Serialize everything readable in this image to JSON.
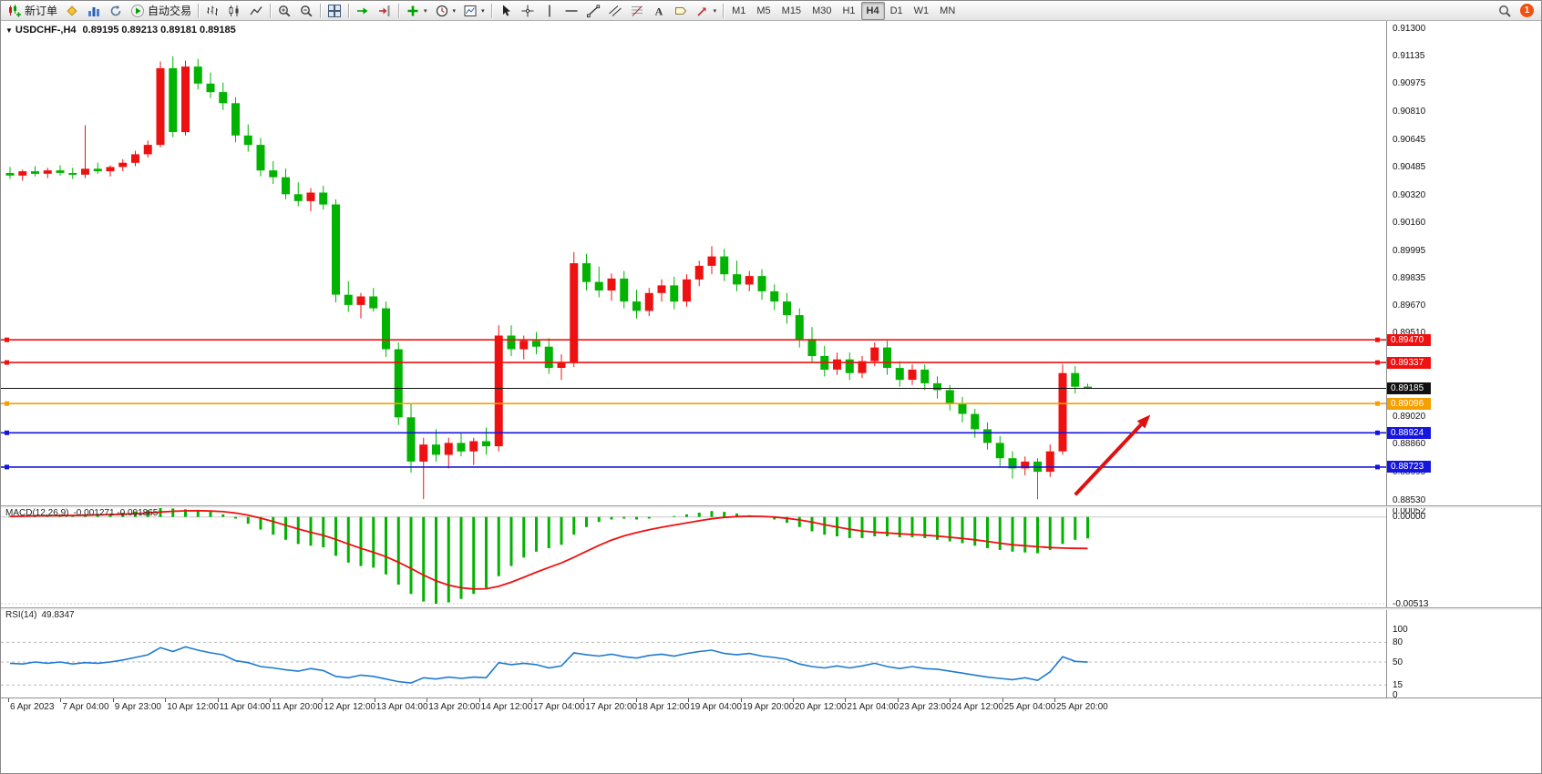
{
  "toolbar": {
    "groups": [
      [
        {
          "name": "new-order",
          "icon": "new-order-icon",
          "label": "新订单"
        },
        {
          "name": "mql-editor",
          "icon": "diamond-icon"
        },
        {
          "name": "market-watch",
          "icon": "market-watch-icon"
        },
        {
          "name": "refresh",
          "icon": "refresh-icon"
        },
        {
          "name": "auto-trading",
          "icon": "autotrade-icon",
          "label": "自动交易"
        }
      ],
      [
        {
          "name": "bar-chart-mode",
          "icon": "bar-chart-icon"
        },
        {
          "name": "candle-chart-mode",
          "icon": "candle-chart-icon"
        },
        {
          "name": "line-chart-mode",
          "icon": "line-chart-icon"
        }
      ],
      [
        {
          "name": "zoom-in",
          "icon": "zoom-in-icon"
        },
        {
          "name": "zoom-out",
          "icon": "zoom-out-icon"
        }
      ],
      [
        {
          "name": "tile-windows",
          "icon": "tile-windows-icon"
        }
      ],
      [
        {
          "name": "auto-scroll",
          "icon": "auto-scroll-icon"
        },
        {
          "name": "chart-shift",
          "icon": "chart-shift-icon"
        }
      ],
      [
        {
          "name": "indicators",
          "icon": "indicators-icon",
          "dd": true
        },
        {
          "name": "periods",
          "icon": "periods-icon",
          "dd": true
        },
        {
          "name": "templates",
          "icon": "templates-icon",
          "dd": true
        }
      ],
      [
        {
          "name": "cursor",
          "icon": "cursor-icon"
        },
        {
          "name": "crosshair",
          "icon": "crosshair-icon"
        },
        {
          "name": "vertical-line",
          "icon": "vline-icon"
        },
        {
          "name": "horizontal-line",
          "icon": "hline-icon"
        },
        {
          "name": "trendline",
          "icon": "trendline-icon"
        },
        {
          "name": "channel",
          "icon": "channel-icon"
        },
        {
          "name": "fibonacci",
          "icon": "fibonacci-icon"
        },
        {
          "name": "text",
          "icon": "text-icon"
        },
        {
          "name": "text-label",
          "icon": "label-icon"
        },
        {
          "name": "arrows",
          "icon": "arrows-icon",
          "dd": true
        }
      ]
    ],
    "timeframes": [
      "M1",
      "M5",
      "M15",
      "M30",
      "H1",
      "H4",
      "D1",
      "W1",
      "MN"
    ],
    "active_timeframe": "H4",
    "notification_count": "1"
  },
  "chart": {
    "symbol_period": "USDCHF-,H4",
    "ohlc_values": "0.89195 0.89213 0.89181 0.89185"
  },
  "chart_data": {
    "type": "candlestick",
    "title": "USDCHF-,H4",
    "current": {
      "open": "0.89195",
      "high": "0.89213",
      "low": "0.89181",
      "close": "0.89185"
    },
    "price_max": 0.913,
    "price_min": 0.8853,
    "price_axis_labels": [
      "0.91300",
      "0.91135",
      "0.90975",
      "0.90810",
      "0.90645",
      "0.90485",
      "0.90320",
      "0.90160",
      "0.89995",
      "0.89835",
      "0.89670",
      "0.89510",
      "0.89345",
      "0.89185",
      "0.89020",
      "0.88860",
      "0.88695",
      "0.88530"
    ],
    "candles": [
      [
        0.9045,
        0.90485,
        0.90415,
        0.90435
      ],
      [
        0.90435,
        0.9047,
        0.90405,
        0.9046
      ],
      [
        0.9046,
        0.9049,
        0.9043,
        0.90445
      ],
      [
        0.90445,
        0.9048,
        0.9042,
        0.90465
      ],
      [
        0.90465,
        0.90495,
        0.90435,
        0.9045
      ],
      [
        0.9045,
        0.9048,
        0.90415,
        0.9044
      ],
      [
        0.9044,
        0.9073,
        0.9042,
        0.90475
      ],
      [
        0.90475,
        0.9051,
        0.90445,
        0.9046
      ],
      [
        0.9046,
        0.90495,
        0.9043,
        0.90485
      ],
      [
        0.90485,
        0.9053,
        0.9046,
        0.9051
      ],
      [
        0.9051,
        0.9058,
        0.9049,
        0.9056
      ],
      [
        0.9056,
        0.9064,
        0.9054,
        0.90615
      ],
      [
        0.90615,
        0.91105,
        0.906,
        0.91065
      ],
      [
        0.91065,
        0.91135,
        0.9066,
        0.9069
      ],
      [
        0.9069,
        0.9111,
        0.9067,
        0.91075
      ],
      [
        0.91075,
        0.9112,
        0.9094,
        0.90975
      ],
      [
        0.90975,
        0.9104,
        0.9089,
        0.90925
      ],
      [
        0.90925,
        0.9098,
        0.9082,
        0.9086
      ],
      [
        0.9086,
        0.90895,
        0.9063,
        0.9067
      ],
      [
        0.9067,
        0.90735,
        0.90575,
        0.90615
      ],
      [
        0.90615,
        0.90655,
        0.9043,
        0.90465
      ],
      [
        0.90465,
        0.9052,
        0.90385,
        0.90425
      ],
      [
        0.90425,
        0.90475,
        0.90295,
        0.90325
      ],
      [
        0.90325,
        0.90395,
        0.90255,
        0.90285
      ],
      [
        0.90285,
        0.9036,
        0.90225,
        0.90335
      ],
      [
        0.90335,
        0.90375,
        0.90235,
        0.90265
      ],
      [
        0.90265,
        0.90295,
        0.8969,
        0.89735
      ],
      [
        0.89735,
        0.89815,
        0.89635,
        0.89675
      ],
      [
        0.89675,
        0.89745,
        0.89595,
        0.89725
      ],
      [
        0.89725,
        0.89775,
        0.89635,
        0.89655
      ],
      [
        0.89655,
        0.89695,
        0.8937,
        0.89415
      ],
      [
        0.89415,
        0.89455,
        0.8897,
        0.89015
      ],
      [
        0.89015,
        0.89095,
        0.8869,
        0.88755
      ],
      [
        0.88755,
        0.88895,
        0.88535,
        0.88855
      ],
      [
        0.88855,
        0.88945,
        0.88755,
        0.88795
      ],
      [
        0.88795,
        0.88895,
        0.88715,
        0.88865
      ],
      [
        0.88865,
        0.88925,
        0.88785,
        0.88815
      ],
      [
        0.88815,
        0.88895,
        0.88735,
        0.88875
      ],
      [
        0.88875,
        0.88955,
        0.88795,
        0.88845
      ],
      [
        0.88845,
        0.89555,
        0.88815,
        0.89495
      ],
      [
        0.89495,
        0.89555,
        0.89375,
        0.89415
      ],
      [
        0.89415,
        0.89495,
        0.89355,
        0.89465
      ],
      [
        0.89465,
        0.89515,
        0.89385,
        0.8943
      ],
      [
        0.8943,
        0.8948,
        0.8927,
        0.89305
      ],
      [
        0.89305,
        0.89385,
        0.89235,
        0.8934
      ],
      [
        0.8934,
        0.89985,
        0.8931,
        0.8992
      ],
      [
        0.8992,
        0.89975,
        0.8976,
        0.8981
      ],
      [
        0.8981,
        0.899,
        0.8972,
        0.8976
      ],
      [
        0.8976,
        0.8986,
        0.897,
        0.8983
      ],
      [
        0.8983,
        0.89875,
        0.89655,
        0.89695
      ],
      [
        0.89695,
        0.89765,
        0.89595,
        0.8964
      ],
      [
        0.8964,
        0.89775,
        0.8961,
        0.89745
      ],
      [
        0.89745,
        0.89825,
        0.89695,
        0.8979
      ],
      [
        0.8979,
        0.8984,
        0.8965,
        0.89695
      ],
      [
        0.89695,
        0.89855,
        0.89665,
        0.89825
      ],
      [
        0.89825,
        0.89935,
        0.89785,
        0.89905
      ],
      [
        0.89905,
        0.9002,
        0.89855,
        0.8996
      ],
      [
        0.8996,
        0.90005,
        0.89815,
        0.89855
      ],
      [
        0.89855,
        0.89935,
        0.89755,
        0.89795
      ],
      [
        0.89795,
        0.89875,
        0.89755,
        0.89845
      ],
      [
        0.89845,
        0.89885,
        0.89705,
        0.89755
      ],
      [
        0.89755,
        0.89795,
        0.89645,
        0.89695
      ],
      [
        0.89695,
        0.89745,
        0.89565,
        0.89615
      ],
      [
        0.89615,
        0.89655,
        0.89425,
        0.89475
      ],
      [
        0.89475,
        0.89545,
        0.89335,
        0.89375
      ],
      [
        0.89375,
        0.89435,
        0.89255,
        0.89295
      ],
      [
        0.89295,
        0.89395,
        0.89265,
        0.89355
      ],
      [
        0.89355,
        0.89395,
        0.89235,
        0.89275
      ],
      [
        0.89275,
        0.89375,
        0.89245,
        0.89345
      ],
      [
        0.89345,
        0.89455,
        0.89315,
        0.89425
      ],
      [
        0.89425,
        0.89465,
        0.89265,
        0.89305
      ],
      [
        0.89305,
        0.89345,
        0.89195,
        0.89235
      ],
      [
        0.89235,
        0.89325,
        0.89205,
        0.89295
      ],
      [
        0.89295,
        0.89325,
        0.89175,
        0.89215
      ],
      [
        0.89215,
        0.89255,
        0.89125,
        0.89175
      ],
      [
        0.89175,
        0.89205,
        0.89055,
        0.89095
      ],
      [
        0.89095,
        0.89135,
        0.88985,
        0.89035
      ],
      [
        0.89035,
        0.89065,
        0.88895,
        0.88945
      ],
      [
        0.88945,
        0.88985,
        0.88825,
        0.88865
      ],
      [
        0.88865,
        0.88905,
        0.88725,
        0.88775
      ],
      [
        0.88775,
        0.88815,
        0.88655,
        0.88715
      ],
      [
        0.88715,
        0.88785,
        0.88675,
        0.88755
      ],
      [
        0.88755,
        0.88775,
        0.88535,
        0.88695
      ],
      [
        0.88695,
        0.88855,
        0.88665,
        0.88815
      ],
      [
        0.88815,
        0.89325,
        0.88795,
        0.89275
      ],
      [
        0.89275,
        0.89315,
        0.89155,
        0.89195
      ],
      [
        0.89195,
        0.89213,
        0.89181,
        0.89185
      ]
    ],
    "hlines": [
      {
        "price": 0.8947,
        "label": "0.89470",
        "color": "#f01010"
      },
      {
        "price": 0.89337,
        "label": "0.89337",
        "color": "#f01010"
      },
      {
        "price": 0.89185,
        "label": "0.89185",
        "color": "#111111",
        "current": true
      },
      {
        "price": 0.89096,
        "label": "0.89096",
        "color": "#f5a000"
      },
      {
        "price": 0.88924,
        "label": "0.88924",
        "color": "#1515dd"
      },
      {
        "price": 0.88723,
        "label": "0.88723",
        "color": "#1515dd"
      }
    ],
    "annotation_arrow": {
      "from_index": 85,
      "from_price": 0.8856,
      "to_index": 91,
      "to_price": 0.8903,
      "color": "#e01010"
    },
    "macd": {
      "name": "MACD(12,26,9)",
      "current": "-0.001271 -0.001865",
      "axis_labels": [
        "0.00052",
        "0.00000",
        "-0.00513"
      ],
      "axis_max": 0.00052,
      "axis_min": -0.00513,
      "histogram": [
        5e-05,
        8e-05,
        0.0001,
        0.0001,
        0.00012,
        0.0001,
        0.00015,
        0.00018,
        0.0002,
        0.00025,
        0.00032,
        0.0004,
        0.00052,
        0.0005,
        0.00045,
        0.0004,
        0.0003,
        0.00015,
        -0.0001,
        -0.0004,
        -0.00075,
        -0.00105,
        -0.00135,
        -0.0016,
        -0.0017,
        -0.0018,
        -0.0023,
        -0.0027,
        -0.0029,
        -0.003,
        -0.0034,
        -0.004,
        -0.00455,
        -0.005,
        -0.00513,
        -0.00505,
        -0.00485,
        -0.00455,
        -0.0042,
        -0.0035,
        -0.0029,
        -0.0024,
        -0.00205,
        -0.00185,
        -0.00165,
        -0.00105,
        -0.0006,
        -0.0003,
        -0.00015,
        -0.0001,
        -0.00015,
        -0.0001,
        0.0,
        5e-05,
        0.00015,
        0.00025,
        0.00035,
        0.0003,
        0.0002,
        0.0001,
        0.0,
        -0.00015,
        -0.00035,
        -0.0006,
        -0.00085,
        -0.00105,
        -0.00115,
        -0.00125,
        -0.00125,
        -0.00115,
        -0.00115,
        -0.0012,
        -0.0012,
        -0.00125,
        -0.00135,
        -0.00145,
        -0.00155,
        -0.0017,
        -0.00185,
        -0.00195,
        -0.00205,
        -0.0021,
        -0.00215,
        -0.00195,
        -0.0016,
        -0.00135,
        -0.00127
      ],
      "signal": [
        3e-05,
        4e-05,
        6e-05,
        7e-05,
        8e-05,
        9e-05,
        0.0001,
        0.00012,
        0.00014,
        0.00016,
        0.00019,
        0.00023,
        0.00029,
        0.00033,
        0.00036,
        0.00037,
        0.00035,
        0.00031,
        0.00023,
        0.0001,
        -7e-05,
        -0.00027,
        -0.00049,
        -0.00071,
        -0.00091,
        -0.00109,
        -0.00133,
        -0.0016,
        -0.00186,
        -0.00209,
        -0.00235,
        -0.00268,
        -0.00305,
        -0.00344,
        -0.00378,
        -0.00403,
        -0.00419,
        -0.00426,
        -0.00425,
        -0.0041,
        -0.00386,
        -0.00357,
        -0.00327,
        -0.00299,
        -0.00272,
        -0.00239,
        -0.00203,
        -0.00168,
        -0.00137,
        -0.00112,
        -0.00093,
        -0.00076,
        -0.00061,
        -0.00048,
        -0.00035,
        -0.00023,
        -0.00011,
        -3e-05,
        2e-05,
        4e-05,
        3e-05,
        -1e-05,
        -8e-05,
        -0.00018,
        -0.00031,
        -0.00046,
        -0.0006,
        -0.00073,
        -0.00083,
        -0.0009,
        -0.00095,
        -0.001,
        -0.00104,
        -0.00108,
        -0.00113,
        -0.0012,
        -0.00127,
        -0.00135,
        -0.00145,
        -0.00155,
        -0.00165,
        -0.0017,
        -0.00176,
        -0.00181,
        -0.00184,
        -0.00186,
        -0.001865
      ]
    },
    "rsi": {
      "name": "RSI(14)",
      "current": "49.8347",
      "axis_labels": [
        "100",
        "80",
        "50",
        "15",
        "0"
      ],
      "levels": [
        80,
        50,
        15
      ],
      "values": [
        48,
        47,
        50,
        48,
        50,
        47,
        49,
        48,
        50,
        53,
        57,
        61,
        72,
        66,
        73,
        68,
        64,
        61,
        52,
        49,
        43,
        41,
        38,
        36,
        40,
        37,
        28,
        26,
        30,
        28,
        24,
        20,
        18,
        26,
        24,
        27,
        25,
        27,
        26,
        49,
        46,
        48,
        46,
        41,
        44,
        64,
        61,
        59,
        62,
        58,
        56,
        60,
        62,
        59,
        63,
        66,
        68,
        63,
        61,
        63,
        59,
        57,
        54,
        47,
        43,
        41,
        44,
        41,
        44,
        48,
        43,
        40,
        43,
        40,
        39,
        36,
        33,
        30,
        27,
        25,
        23,
        26,
        22,
        35,
        58,
        51,
        49.8
      ]
    },
    "time_labels": [
      "6 Apr 2023",
      "7 Apr 04:00",
      "9 Apr 23:00",
      "10 Apr 12:00",
      "11 Apr 04:00",
      "11 Apr 20:00",
      "12 Apr 12:00",
      "13 Apr 04:00",
      "13 Apr 20:00",
      "14 Apr 12:00",
      "17 Apr 04:00",
      "17 Apr 20:00",
      "18 Apr 12:00",
      "19 Apr 04:00",
      "19 Apr 20:00",
      "20 Apr 12:00",
      "21 Apr 04:00",
      "23 Apr 23:00",
      "24 Apr 12:00",
      "25 Apr 04:00",
      "25 Apr 20:00"
    ],
    "colors": {
      "bull": "#ee1111",
      "bear": "#02b302",
      "macd_histogram": "#02b302",
      "macd_signal": "#ee1111",
      "rsi_line": "#1e7ad2"
    }
  }
}
